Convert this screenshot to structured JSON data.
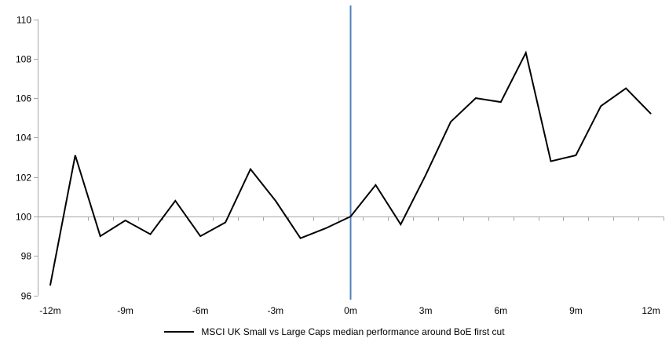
{
  "chart_data": {
    "type": "line",
    "title": "",
    "xlabel": "",
    "ylabel": "",
    "x_months": [
      -12,
      -11,
      -10,
      -9,
      -8,
      -7,
      -6,
      -5,
      -4,
      -3,
      -2,
      -1,
      0,
      1,
      2,
      3,
      4,
      5,
      6,
      7,
      8,
      9,
      10,
      11,
      12
    ],
    "series": [
      {
        "name": "MSCI UK Small vs Large Caps median performance around BoE first cut",
        "color": "#000000",
        "values": [
          96.5,
          103.1,
          99.0,
          99.8,
          99.1,
          100.8,
          99.0,
          99.7,
          102.4,
          100.8,
          98.9,
          99.4,
          100.0,
          101.6,
          99.6,
          102.1,
          104.8,
          106.0,
          105.8,
          108.3,
          102.8,
          103.1,
          105.6,
          106.5,
          105.2
        ]
      }
    ],
    "x_tick_labels": [
      "-12m",
      "-9m",
      "-6m",
      "-3m",
      "0m",
      "3m",
      "6m",
      "9m",
      "12m"
    ],
    "x_tick_months": [
      -12,
      -9,
      -6,
      -3,
      0,
      3,
      6,
      9,
      12
    ],
    "y_ticks": [
      96,
      98,
      100,
      102,
      104,
      106,
      108,
      110
    ],
    "ylim": [
      96,
      110
    ],
    "axis_cross_value": 100,
    "event_line_month": 0,
    "event_line_color": "#4F81BD",
    "axis_color": "#A6A6A6",
    "grid_on": false,
    "legend_position": "bottom"
  }
}
